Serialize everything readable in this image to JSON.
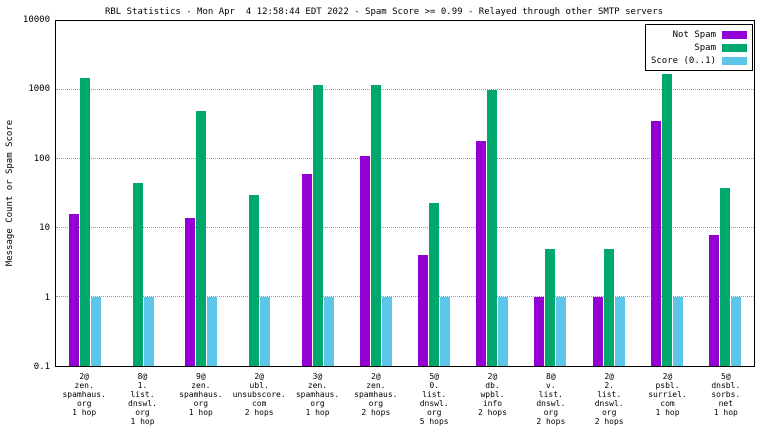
{
  "title": "RBL Statistics - Mon Apr  4 12:58:44 EDT 2022 - Spam Score >= 0.99 - Relayed through other SMTP servers",
  "ylabel": "Message Count or Spam Score",
  "y_ticks": [
    "10000",
    "1000",
    "100",
    "10",
    "1",
    "0.1"
  ],
  "chart_data": {
    "type": "bar",
    "y_scale": "log",
    "ylim": [
      0.1,
      10000
    ],
    "grid": "horizontal-dotted",
    "legend_position": "top-right",
    "title": "RBL Statistics - Mon Apr  4 12:58:44 EDT 2022 - Spam Score >= 0.99 - Relayed through other SMTP servers",
    "xlabel": "",
    "ylabel": "Message Count or Spam Score",
    "categories": [
      [
        "2@",
        "zen.",
        "spamhaus.",
        "org",
        "1 hop"
      ],
      [
        "8@",
        "1.",
        "list.",
        "dnswl.",
        "org",
        "1 hop"
      ],
      [
        "9@",
        "zen.",
        "spamhaus.",
        "org",
        "1 hop"
      ],
      [
        "2@",
        "ubl.",
        "unsubscore.",
        "com",
        "2 hops"
      ],
      [
        "3@",
        "zen.",
        "spamhaus.",
        "org",
        "1 hop"
      ],
      [
        "2@",
        "zen.",
        "spamhaus.",
        "org",
        "2 hops"
      ],
      [
        "5@",
        "0.",
        "list.",
        "dnswl.",
        "org",
        "5 hops"
      ],
      [
        "2@",
        "db.",
        "wpbl.",
        "info",
        "2 hops"
      ],
      [
        "8@",
        "v.",
        "list.",
        "dnswl.",
        "org",
        "2 hops"
      ],
      [
        "2@",
        "2.",
        "list.",
        "dnswl.",
        "org",
        "2 hops"
      ],
      [
        "2@",
        "psbl.",
        "surriel.",
        "com",
        "1 hop"
      ],
      [
        "5@",
        "dnsbl.",
        "sorbs.",
        "net",
        "1 hop"
      ]
    ],
    "series": [
      {
        "name": "Not Spam",
        "color": "#9400D3",
        "values": [
          16,
          null,
          14,
          null,
          60,
          110,
          4,
          180,
          1,
          1,
          350,
          8
        ]
      },
      {
        "name": "Spam",
        "color": "#00A86B",
        "values": [
          1500,
          45,
          500,
          30,
          1200,
          1200,
          23,
          1000,
          5,
          5,
          1700,
          38
        ]
      },
      {
        "name": "Score (0..1)",
        "color": "#5BC6E8",
        "values": [
          1,
          1,
          1,
          1,
          1,
          1,
          1,
          1,
          1,
          1,
          1,
          1
        ]
      }
    ]
  }
}
